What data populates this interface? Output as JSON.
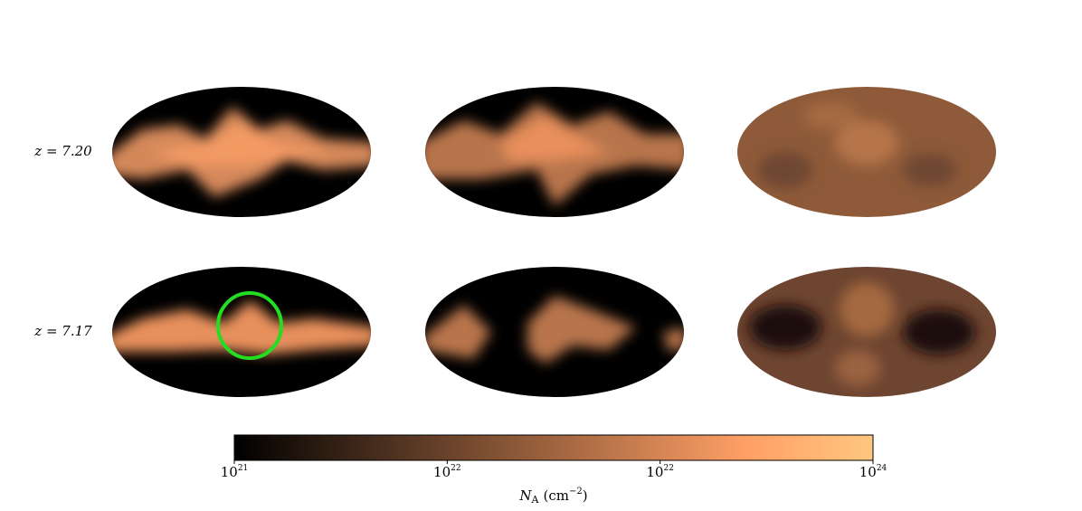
{
  "figure": {
    "rows": [
      {
        "label": "z = 7.20"
      },
      {
        "label": "z = 7.17"
      }
    ],
    "colorbar": {
      "ticks": [
        {
          "base": "10",
          "exp": "21"
        },
        {
          "base": "10",
          "exp": "22"
        },
        {
          "base": "10",
          "exp": "22"
        },
        {
          "base": "10",
          "exp": "24"
        }
      ],
      "label": {
        "symbol": "N",
        "sub": "A",
        "unit": "(cm",
        "sup": "−2",
        "close": ")"
      }
    }
  }
}
